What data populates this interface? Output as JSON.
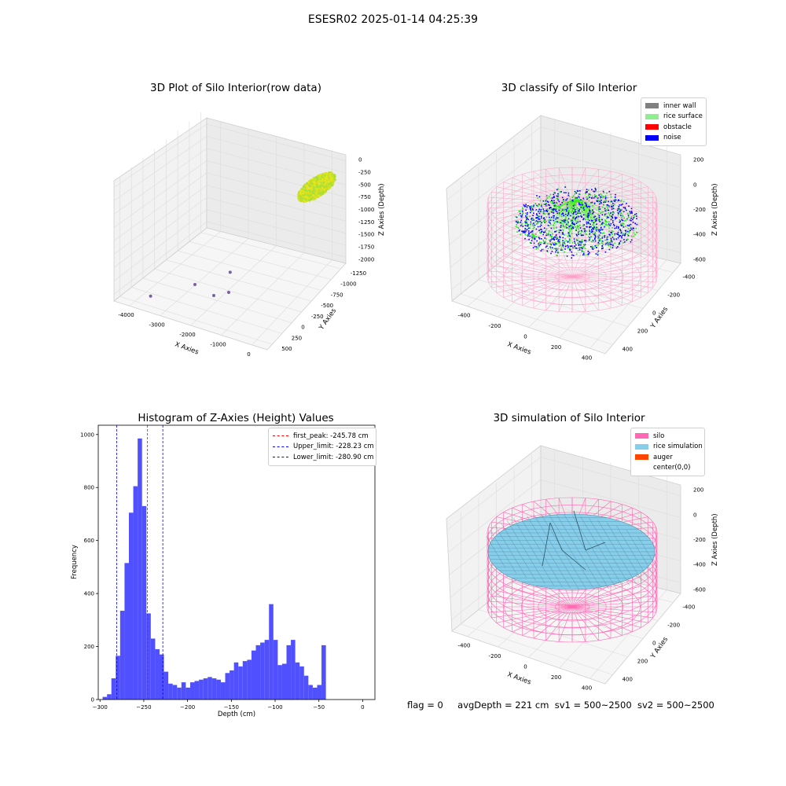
{
  "figure_title": "ESESR02 2025-01-14 04:25:39",
  "footer": {
    "flag": "flag = 0",
    "avg_depth": "avgDepth = 221 cm",
    "sv1": "sv1 = 500~2500",
    "sv2": "sv2 = 500~2500"
  },
  "colors": {
    "inner_wall": "#808080",
    "rice_surface": "#90ee90",
    "obstacle": "#ff0000",
    "noise": "#0000ff",
    "silo": "#ff69b4",
    "rice_simulation": "#87ceeb",
    "auger": "#ff4500",
    "hist_bar": "#5050ff",
    "raw_points": "#e6e618"
  },
  "chart_data": [
    {
      "type": "scatter3d",
      "title": "3D Plot of Silo Interior(row data)",
      "xlabel": "X Axies",
      "ylabel": "Y Axies",
      "zlabel": "Z Axies (Depth)",
      "x_ticks": [
        "-4000",
        "-3000",
        "-2000",
        "-1000",
        "0"
      ],
      "y_ticks": [
        "500",
        "250",
        "0",
        "-250",
        "-500",
        "-750",
        "-1000",
        "-1250"
      ],
      "z_ticks": [
        "0",
        "-250",
        "-500",
        "-750",
        "-1000",
        "-1250",
        "-1500",
        "-1750",
        "-2000"
      ],
      "outliers": [
        {
          "x": -4000,
          "y": 500,
          "z": -2000
        },
        {
          "x": -3200,
          "y": 300,
          "z": -1900
        },
        {
          "x": -2600,
          "y": 100,
          "z": -1800
        },
        {
          "x": -2700,
          "y": 400,
          "z": -2000
        },
        {
          "x": -2200,
          "y": 600,
          "z": -1700
        }
      ]
    },
    {
      "type": "scatter3d",
      "title": "3D classify of Silo Interior",
      "xlabel": "X Axies",
      "ylabel": "Y Axies",
      "zlabel": "Z Axies (Depth)",
      "x_ticks": [
        "-400",
        "-200",
        "0",
        "200",
        "400"
      ],
      "y_ticks": [
        "400",
        "200",
        "0",
        "-200",
        "-400"
      ],
      "z_ticks": [
        "200",
        "0",
        "-200",
        "-400",
        "-600"
      ],
      "legend": [
        "inner wall",
        "rice surface",
        "obstacle",
        "noise"
      ]
    },
    {
      "type": "bar",
      "title": "Histogram of Z-Axies (Height) Values",
      "xlabel": "Depth (cm)",
      "ylabel": "Frequency",
      "xlim": [
        -302,
        14
      ],
      "ylim": [
        0,
        1035
      ],
      "x_ticks": [
        -300,
        -250,
        -200,
        -150,
        -100,
        -50,
        0
      ],
      "y_ticks": [
        0,
        200,
        400,
        600,
        800,
        1000
      ],
      "bin_start": -297,
      "bin_width": 5,
      "values": [
        10,
        20,
        80,
        165,
        335,
        515,
        705,
        805,
        985,
        730,
        325,
        230,
        190,
        170,
        105,
        60,
        55,
        45,
        65,
        45,
        65,
        70,
        75,
        80,
        85,
        80,
        75,
        65,
        100,
        110,
        140,
        125,
        145,
        150,
        185,
        205,
        215,
        225,
        360,
        225,
        130,
        135,
        205,
        225,
        140,
        125,
        90,
        55,
        45,
        55,
        205
      ],
      "vlines": [
        {
          "label": "first_peak: -245.78 cm",
          "x": -245.78,
          "color": "#ff0000"
        },
        {
          "label": "Upper_limit: -228.23 cm",
          "x": -228.23,
          "color": "#0000ff"
        },
        {
          "label": "Lower_limit: -280.90 cm",
          "x": -280.9,
          "color": "#0000ff"
        }
      ]
    },
    {
      "type": "surface3d",
      "title": "3D simulation of Silo Interior",
      "xlabel": "X Axies",
      "ylabel": "Y Axies",
      "zlabel": "Z Axies (Depth)",
      "x_ticks": [
        "-400",
        "-200",
        "0",
        "200",
        "400"
      ],
      "y_ticks": [
        "400",
        "200",
        "0",
        "-200",
        "-400"
      ],
      "z_ticks": [
        "200",
        "0",
        "-200",
        "-400",
        "-600"
      ],
      "legend": [
        "silo",
        "rice simulation",
        "auger",
        "center(0,0)"
      ]
    }
  ]
}
